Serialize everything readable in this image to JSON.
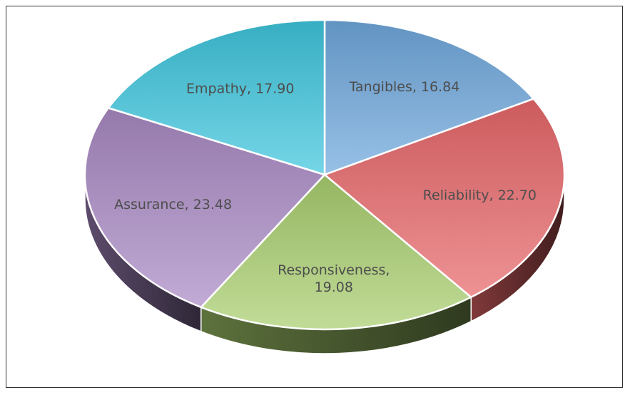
{
  "chart_data": {
    "type": "pie",
    "categories": [
      "Tangibles",
      "Reliability",
      "Responsiveness",
      "Assurance",
      "Empathy"
    ],
    "values": [
      16.84,
      22.7,
      19.08,
      23.48,
      17.9
    ],
    "labels": [
      "Tangibles, 16.84",
      "Reliability, 22.70",
      "Responsiveness, 19.08",
      "Assurance, 23.48",
      "Empathy, 17.90"
    ],
    "colors": [
      "#6fa8dc",
      "#e8676a",
      "#a9cf6f",
      "#a98ac4",
      "#3fc6de"
    ],
    "title": "",
    "legend": "none",
    "start": "top",
    "direction": "clockwise",
    "style": "3d"
  }
}
